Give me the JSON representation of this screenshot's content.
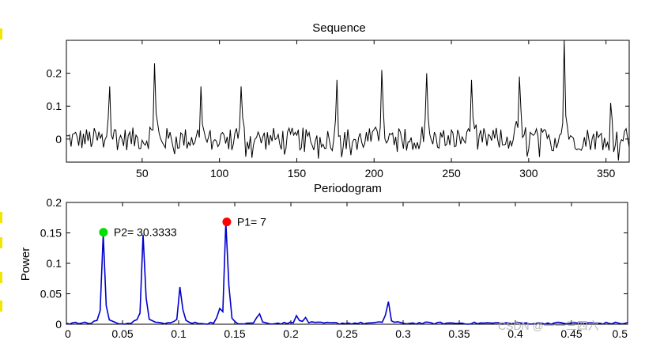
{
  "watermark": "CSDN @一一三四六",
  "chart_data": [
    {
      "type": "line",
      "title": "Sequence",
      "xlabel": "",
      "ylabel": "",
      "xlim": [
        1,
        365
      ],
      "ylim": [
        -0.07,
        0.3
      ],
      "xticks": [
        50,
        100,
        150,
        200,
        250,
        300,
        350
      ],
      "yticks": [
        0,
        0.1,
        0.2
      ],
      "ytick_labels": [
        "0",
        "0.1",
        "0.2"
      ],
      "color": "#000000",
      "peaks": [
        {
          "x": 29,
          "y": 0.16
        },
        {
          "x": 58,
          "y": 0.23
        },
        {
          "x": 88,
          "y": 0.16
        },
        {
          "x": 114,
          "y": 0.16
        },
        {
          "x": 176,
          "y": 0.18
        },
        {
          "x": 205,
          "y": 0.21
        },
        {
          "x": 234,
          "y": 0.2
        },
        {
          "x": 263,
          "y": 0.18
        },
        {
          "x": 294,
          "y": 0.19
        },
        {
          "x": 323,
          "y": 0.3
        },
        {
          "x": 353,
          "y": 0.11
        }
      ]
    },
    {
      "type": "line",
      "title": "Periodogram",
      "xlabel": "",
      "ylabel": "Power",
      "xlim": [
        0,
        0.5
      ],
      "ylim": [
        0,
        0.2
      ],
      "xticks": [
        0,
        0.05,
        0.1,
        0.15,
        0.2,
        0.25,
        0.3,
        0.35,
        0.4,
        0.45,
        0.5
      ],
      "xtick_labels": [
        "0",
        "0.05",
        "0.1",
        "0.15",
        "0.2",
        "0.25",
        "0.3",
        "0.35",
        "0.4",
        "0.45",
        "0.5"
      ],
      "yticks": [
        0,
        0.05,
        0.1,
        0.15,
        0.2
      ],
      "ytick_labels": [
        "0",
        "0.05",
        "0.1",
        "0.15",
        "0.2"
      ],
      "color": "#0000cc",
      "peaks": [
        {
          "x": 0.033,
          "y": 0.148
        },
        {
          "x": 0.069,
          "y": 0.147
        },
        {
          "x": 0.102,
          "y": 0.061
        },
        {
          "x": 0.136,
          "y": 0.021
        },
        {
          "x": 0.143,
          "y": 0.168
        },
        {
          "x": 0.171,
          "y": 0.017
        },
        {
          "x": 0.205,
          "y": 0.014
        },
        {
          "x": 0.213,
          "y": 0.011
        },
        {
          "x": 0.286,
          "y": 0.037
        }
      ],
      "markers": [
        {
          "label": "P1= 7",
          "x": 0.1429,
          "y": 0.168,
          "color": "#ff0000"
        },
        {
          "label": "P2= 30.3333",
          "x": 0.033,
          "y": 0.151,
          "color": "#00dd00"
        }
      ]
    }
  ]
}
